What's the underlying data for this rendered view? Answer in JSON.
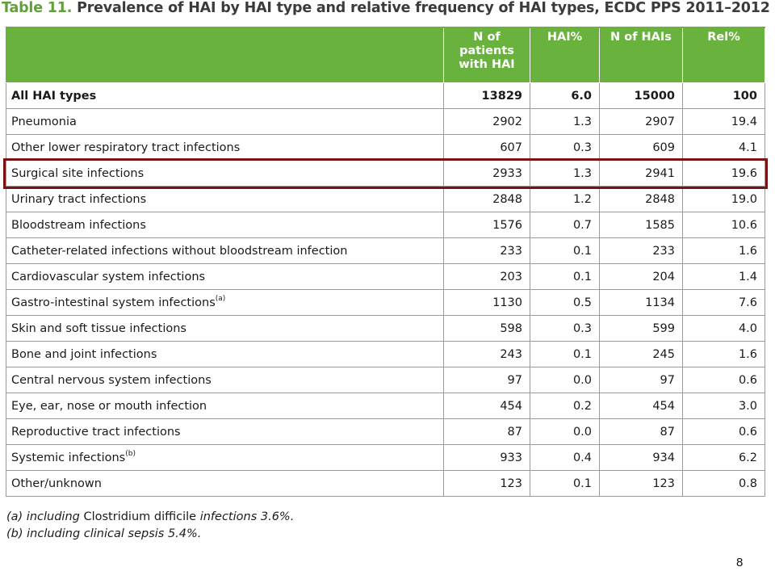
{
  "title": {
    "prefix": "Table 11.",
    "text": " Prevalence of HAI by HAI type and relative frequency of HAI types, ECDC PPS 2011–2012"
  },
  "table": {
    "headers": [
      "",
      "N of patients with HAI",
      "HAI%",
      "N of HAIs",
      "Rel%"
    ],
    "rows": [
      {
        "label": "All HAI types",
        "sup": "",
        "n_patients": "13829",
        "hai_pct": "6.0",
        "n_hais": "15000",
        "rel_pct": "100"
      },
      {
        "label": "Pneumonia",
        "sup": "",
        "n_patients": "2902",
        "hai_pct": "1.3",
        "n_hais": "2907",
        "rel_pct": "19.4"
      },
      {
        "label": "Other lower respiratory tract infections",
        "sup": "",
        "n_patients": "607",
        "hai_pct": "0.3",
        "n_hais": "609",
        "rel_pct": "4.1"
      },
      {
        "label": "Surgical site infections",
        "sup": "",
        "n_patients": "2933",
        "hai_pct": "1.3",
        "n_hais": "2941",
        "rel_pct": "19.6"
      },
      {
        "label": "Urinary tract infections",
        "sup": "",
        "n_patients": "2848",
        "hai_pct": "1.2",
        "n_hais": "2848",
        "rel_pct": "19.0"
      },
      {
        "label": "Bloodstream infections",
        "sup": "",
        "n_patients": "1576",
        "hai_pct": "0.7",
        "n_hais": "1585",
        "rel_pct": "10.6"
      },
      {
        "label": "Catheter-related infections without bloodstream infection",
        "sup": "",
        "n_patients": "233",
        "hai_pct": "0.1",
        "n_hais": "233",
        "rel_pct": "1.6"
      },
      {
        "label": "Cardiovascular system infections",
        "sup": "",
        "n_patients": "203",
        "hai_pct": "0.1",
        "n_hais": "204",
        "rel_pct": "1.4"
      },
      {
        "label": "Gastro-intestinal system infections",
        "sup": "(a)",
        "n_patients": "1130",
        "hai_pct": "0.5",
        "n_hais": "1134",
        "rel_pct": "7.6"
      },
      {
        "label": "Skin and soft tissue infections",
        "sup": "",
        "n_patients": "598",
        "hai_pct": "0.3",
        "n_hais": "599",
        "rel_pct": "4.0"
      },
      {
        "label": "Bone and joint infections",
        "sup": "",
        "n_patients": "243",
        "hai_pct": "0.1",
        "n_hais": "245",
        "rel_pct": "1.6"
      },
      {
        "label": "Central nervous system infections",
        "sup": "",
        "n_patients": "97",
        "hai_pct": "0.0",
        "n_hais": "97",
        "rel_pct": "0.6"
      },
      {
        "label": "Eye, ear, nose or mouth infection",
        "sup": "",
        "n_patients": "454",
        "hai_pct": "0.2",
        "n_hais": "454",
        "rel_pct": "3.0"
      },
      {
        "label": "Reproductive tract infections",
        "sup": "",
        "n_patients": "87",
        "hai_pct": "0.0",
        "n_hais": "87",
        "rel_pct": "0.6"
      },
      {
        "label": "Systemic infections",
        "sup": "(b)",
        "n_patients": "933",
        "hai_pct": "0.4",
        "n_hais": "934",
        "rel_pct": "6.2"
      },
      {
        "label": "Other/unknown",
        "sup": "",
        "n_patients": "123",
        "hai_pct": "0.1",
        "n_hais": "123",
        "rel_pct": "0.8"
      }
    ],
    "highlighted_row": "Surgical site infections",
    "colors": {
      "header_bg": "#6ab23e",
      "highlight_border": "#7a1414",
      "title_number": "#62a03a"
    }
  },
  "footnotes": [
    {
      "marker": "(a) including ",
      "plain": "Clostridium difficile",
      "rest": " infections 3.6%."
    },
    {
      "marker": "(b) including clinical sepsis 5.4%.",
      "plain": "",
      "rest": ""
    }
  ],
  "page_number": "8"
}
